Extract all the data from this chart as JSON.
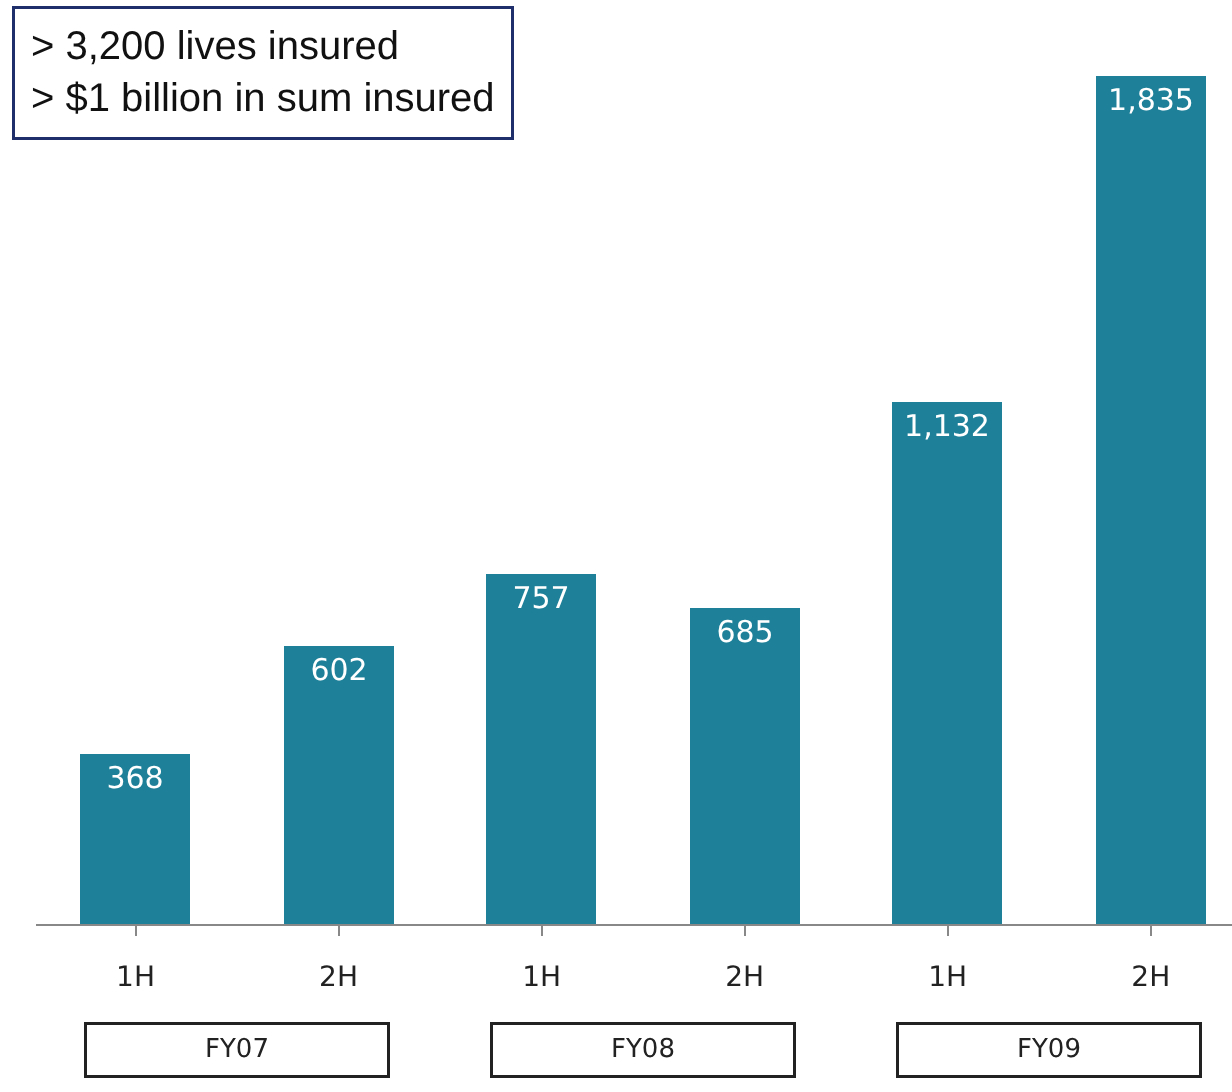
{
  "chart_data": {
    "type": "bar",
    "categories": [
      "1H",
      "2H",
      "1H",
      "2H",
      "1H",
      "2H"
    ],
    "values": [
      368,
      602,
      757,
      685,
      1132,
      1835
    ],
    "value_labels": [
      "368",
      "602",
      "757",
      "685",
      "1,132",
      "1,835"
    ],
    "color": "#1f8199",
    "annotations": [
      "> 3,200 lives insured\n> $1 billion in sum insured",
      "FY07",
      "FY08",
      "FY09"
    ]
  }
}
